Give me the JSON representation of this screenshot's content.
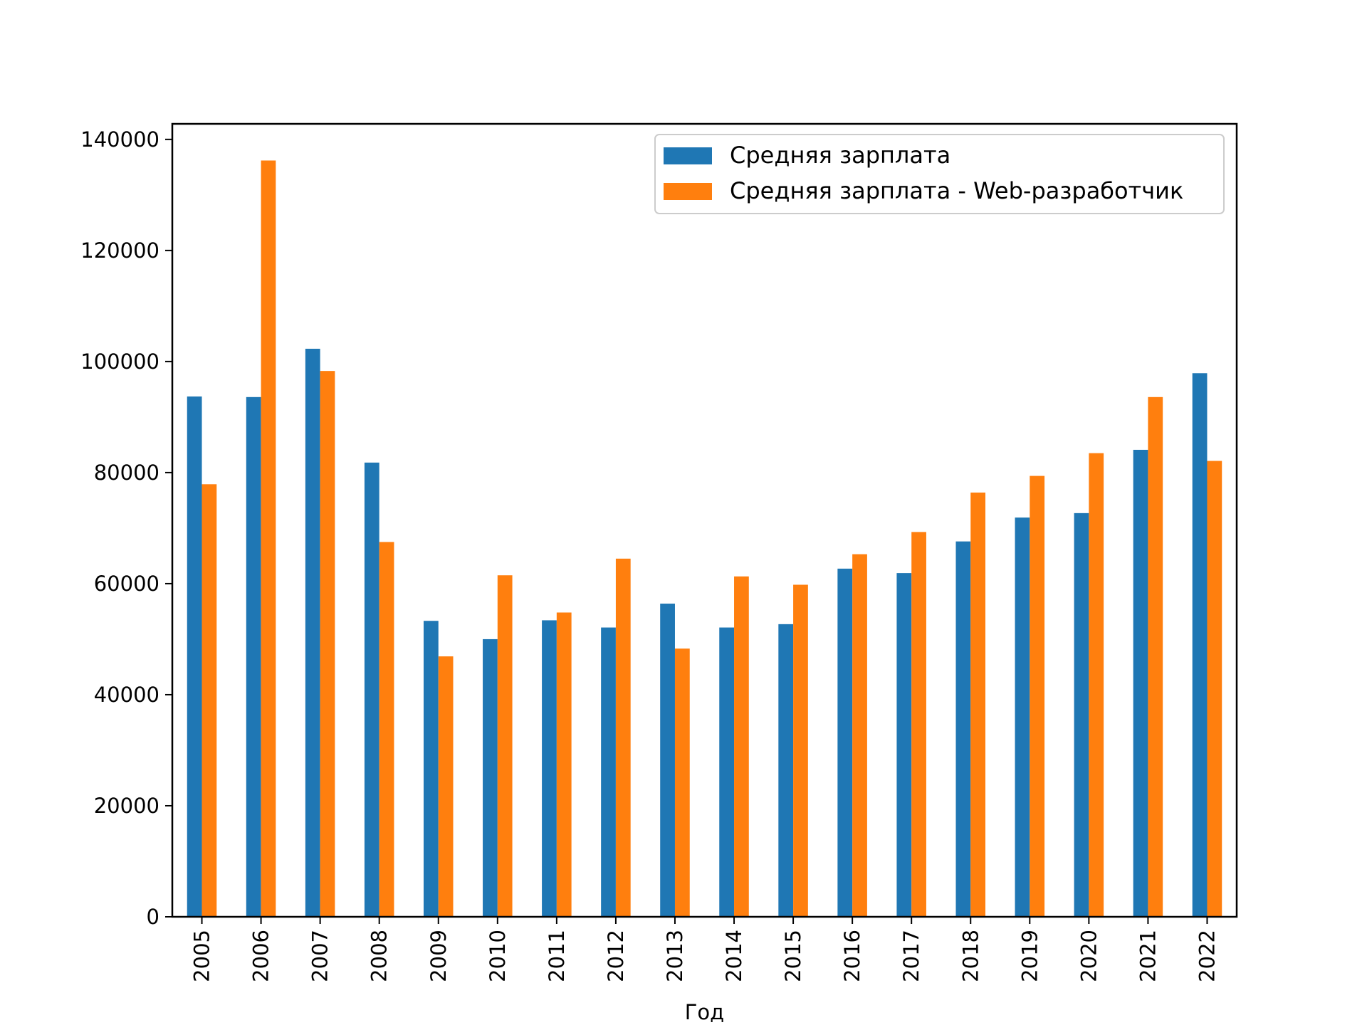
{
  "chart_data": {
    "type": "bar",
    "title": "",
    "xlabel": "Год",
    "ylabel": "",
    "categories": [
      "2005",
      "2006",
      "2007",
      "2008",
      "2009",
      "2010",
      "2011",
      "2012",
      "2013",
      "2014",
      "2015",
      "2016",
      "2017",
      "2018",
      "2019",
      "2020",
      "2021",
      "2022"
    ],
    "series": [
      {
        "name": "Средняя зарплата",
        "color": "#1f77b4",
        "values": [
          93700,
          93600,
          102300,
          81800,
          53300,
          50000,
          53400,
          52100,
          56400,
          52100,
          52700,
          62700,
          61900,
          67600,
          71900,
          72700,
          84100,
          97900
        ]
      },
      {
        "name": "Средняя зарплата - Web-разработчик",
        "color": "#ff7f0e",
        "values": [
          77900,
          136200,
          98300,
          67500,
          46900,
          61500,
          54800,
          64500,
          48300,
          61300,
          59800,
          65300,
          69300,
          76400,
          79400,
          83500,
          93600,
          82100
        ]
      }
    ],
    "ylim": [
      0,
      142800
    ],
    "yticks": [
      0,
      20000,
      40000,
      60000,
      80000,
      100000,
      120000,
      140000
    ],
    "legend_position": "top-right",
    "grid": false
  }
}
